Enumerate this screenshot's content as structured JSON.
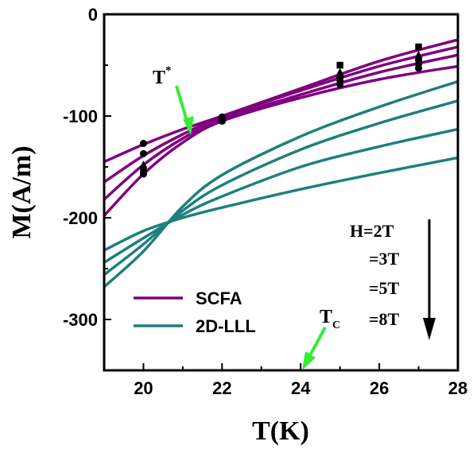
{
  "chart_data": {
    "type": "line",
    "xlabel": "T(K)",
    "ylabel": "M(A/m)",
    "xlim": [
      19,
      28
    ],
    "ylim": [
      -350,
      0
    ],
    "xticks": [
      20,
      22,
      24,
      26,
      28
    ],
    "yticks": [
      0,
      -100,
      -200,
      -300
    ],
    "legend": [
      {
        "name": "SCFA",
        "color": "#800080"
      },
      {
        "name": "2D-LLL",
        "color": "#1e7f7f"
      }
    ],
    "series": [
      {
        "group": "SCFA",
        "field": "H=2T",
        "x": [
          19,
          20,
          21,
          22,
          24,
          26,
          28
        ],
        "y": [
          -145,
          -128,
          -113,
          -100,
          -73,
          -46,
          -25
        ]
      },
      {
        "group": "SCFA",
        "field": "=3T",
        "x": [
          19,
          20,
          21,
          22,
          24,
          26,
          28
        ],
        "y": [
          -165,
          -139,
          -118,
          -101,
          -75,
          -51,
          -32
        ]
      },
      {
        "group": "SCFA",
        "field": "=5T",
        "x": [
          19,
          20,
          21,
          22,
          24,
          26,
          28
        ],
        "y": [
          -182,
          -148,
          -122,
          -103,
          -79,
          -57,
          -40
        ]
      },
      {
        "group": "SCFA",
        "field": "=8T",
        "x": [
          19,
          20,
          21,
          22,
          24,
          26,
          28
        ],
        "y": [
          -198,
          -157,
          -126,
          -105,
          -82,
          -64,
          -51
        ]
      },
      {
        "group": "2D-LLL",
        "field": "H=2T",
        "x": [
          19,
          20,
          21,
          22,
          24,
          26,
          28
        ],
        "y": [
          -268,
          -233,
          -189,
          -158,
          -120,
          -91,
          -66
        ]
      },
      {
        "group": "2D-LLL",
        "field": "=3T",
        "x": [
          19,
          20,
          21,
          22,
          24,
          26,
          28
        ],
        "y": [
          -256,
          -226,
          -193,
          -168,
          -133,
          -107,
          -85
        ]
      },
      {
        "group": "2D-LLL",
        "field": "=5T",
        "x": [
          19,
          20,
          21,
          22,
          24,
          26,
          28
        ],
        "y": [
          -244,
          -220,
          -197,
          -179,
          -150,
          -130,
          -113
        ]
      },
      {
        "group": "2D-LLL",
        "field": "=8T",
        "x": [
          19,
          20,
          21,
          22,
          24,
          26,
          28
        ],
        "y": [
          -232,
          -213,
          -200,
          -190,
          -172,
          -156,
          -141
        ]
      }
    ],
    "points": [
      {
        "field": "H=2T",
        "marker": "circle",
        "x": [
          20,
          22,
          25,
          27
        ],
        "y": [
          -127,
          -101,
          -62,
          -45
        ]
      },
      {
        "field": "=3T",
        "marker": "circle",
        "x": [
          20,
          22,
          25,
          27
        ],
        "y": [
          -137,
          -102,
          -65,
          -49
        ]
      },
      {
        "field": "=5T",
        "marker": "triangle",
        "x": [
          20,
          22,
          25,
          27
        ],
        "y": [
          -148,
          -103,
          -57,
          -40
        ]
      },
      {
        "field": "=8T",
        "marker": "square",
        "x": [
          20,
          22,
          25,
          27
        ],
        "y": [
          -154,
          -104,
          -50,
          -32
        ]
      },
      {
        "field": "=8T",
        "marker": "circle",
        "x": [
          20,
          22,
          25,
          27
        ],
        "y": [
          -157,
          -105,
          -69,
          -53
        ]
      }
    ],
    "annotations": {
      "tstar": {
        "label": "T",
        "sup": "*",
        "x": 21.2,
        "y": -117
      },
      "tc": {
        "label": "T",
        "sub": "C",
        "x": 24,
        "y": -350
      }
    },
    "fields": [
      "H=2T",
      "=3T",
      "=5T",
      "=8T"
    ],
    "arrow_color": "#33ee33"
  }
}
